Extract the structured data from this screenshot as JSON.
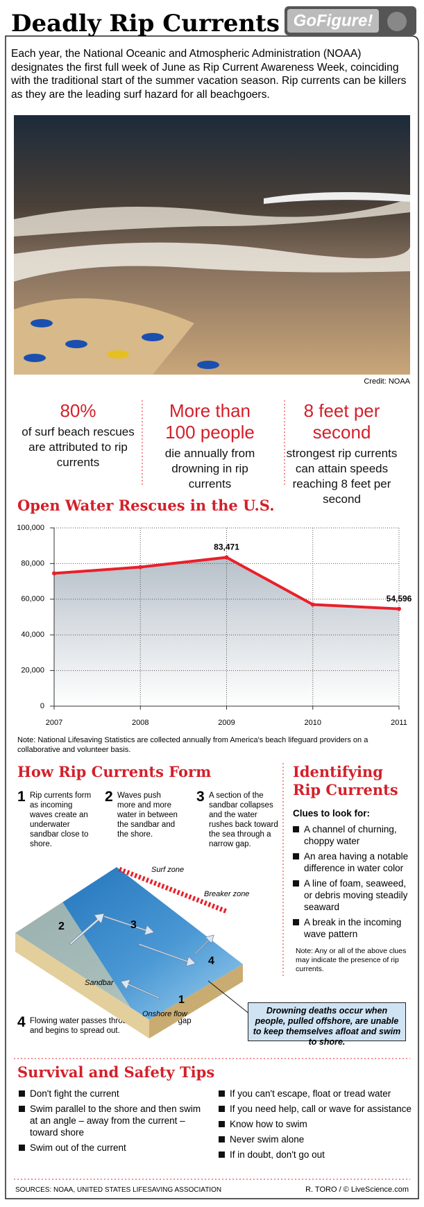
{
  "header": {
    "title": "Deadly Rip Currents",
    "logo": "GoFigure!"
  },
  "intro": "Each year, the National Oceanic and Atmospheric Administration (NOAA) designates the first full week of June as Rip Current Awareness Week, coinciding with the traditional start of the summer vacation season. Rip currents can be killers as they are the leading surf hazard for all beachgoers.",
  "photo": {
    "credit": "Credit: NOAA"
  },
  "stats": [
    {
      "value": "80%",
      "text": "of surf beach rescues are attributed to rip currents"
    },
    {
      "value": "More than 100 people",
      "text": "die annually from drowning in rip currents"
    },
    {
      "value": "8 feet per second",
      "text": "strongest rip currents can attain speeds reaching 8 feet per second"
    }
  ],
  "chart_data": {
    "type": "line",
    "title": "Open Water Rescues in the U.S.",
    "categories": [
      "2007",
      "2008",
      "2009",
      "2010",
      "2011"
    ],
    "values": [
      74500,
      78000,
      83471,
      57000,
      54596
    ],
    "value_labels": [
      null,
      null,
      "83,471",
      null,
      "54,596"
    ],
    "color": "#e8202a",
    "ylim": [
      0,
      100000
    ],
    "yticks": [
      0,
      {
        "value": 20000,
        "label": "20,000"
      },
      {
        "value": 40000,
        "label": "40,000"
      },
      {
        "value": 60000,
        "label": "60,000"
      },
      {
        "value": 80000,
        "label": "80,000"
      },
      {
        "value": 100000,
        "label": "100,000"
      }
    ],
    "grid": true,
    "note": "Note: National Lifesaving Statistics are collected annually from America's beach lifeguard providers on a collaborative and volunteer basis."
  },
  "how_form": {
    "title": "How Rip Currents Form",
    "steps": [
      {
        "number": "1",
        "text": "Rip currents form as incoming waves create an underwater sandbar close to shore."
      },
      {
        "number": "2",
        "text": "Waves push more and more water in between the sandbar and the shore."
      },
      {
        "number": "3",
        "text": "A section of the sandbar collapses and the water rushes back toward the sea through a narrow gap."
      },
      {
        "number": "4",
        "text": "Flowing water passes through the narrow gap and begins to spread out."
      }
    ],
    "diagram": {
      "surf_zone": "Surf zone",
      "breaker_zone": "Breaker zone",
      "sandbar": "Sandbar",
      "onshore_flow": "Onshore flow",
      "markers": [
        "1",
        "2",
        "3",
        "4"
      ]
    },
    "callout": "Drowning deaths occur when people, pulled offshore, are unable to keep themselves afloat and swim to shore."
  },
  "identifying": {
    "title": "Identifying Rip Currents",
    "subtitle": "Clues to look for:",
    "clues": [
      "A channel of churning, choppy water",
      "An area having a notable difference in water color",
      "A line of foam, seaweed, or debris moving steadily seaward",
      "A break in the incoming wave pattern"
    ],
    "note": "Note: Any or all of the above clues may indicate the presence of rip currents."
  },
  "tips": {
    "title": "Survival and Safety Tips",
    "left": [
      "Don't fight the current",
      "Swim parallel to the shore and then swim at an angle – away from the current – toward shore",
      "Swim out of the current"
    ],
    "right": [
      "If you can't escape, float or tread water",
      "If you need help, call or wave for assistance",
      "Know how to swim",
      "Never swim alone",
      "If in doubt, don't go out"
    ]
  },
  "footer": {
    "sources": "SOURCES: NOAA, UNITED STATES LIFESAVING ASSOCIATION",
    "credit": "R. TORO / © LiveScience.com"
  }
}
